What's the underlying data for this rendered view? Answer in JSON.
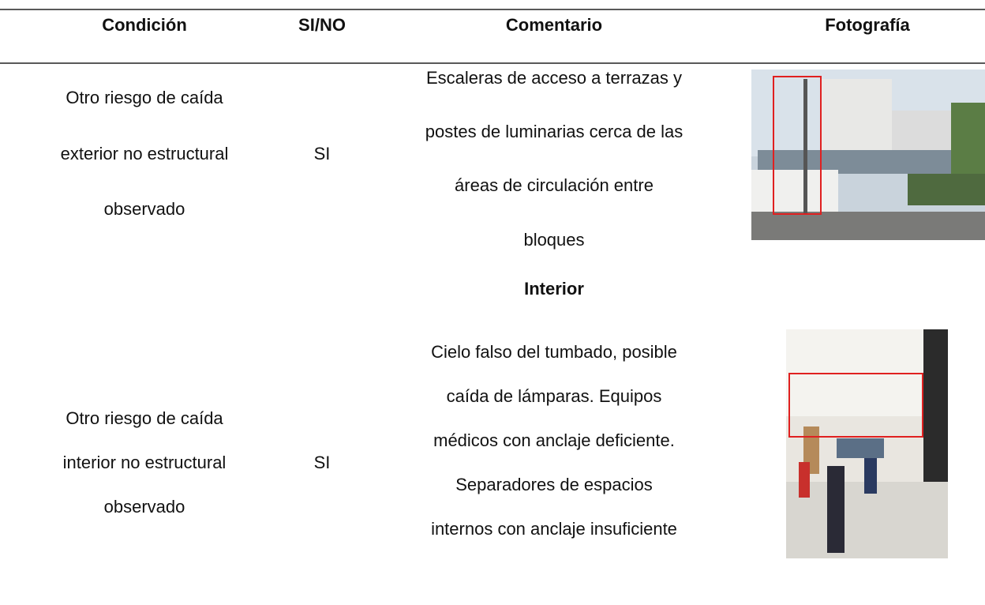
{
  "table": {
    "header": [
      "Condición",
      "SI/NO",
      "Comentario",
      "Fotografía"
    ],
    "rows": [
      {
        "condition": [
          "Otro riesgo de caída",
          "exterior no estructural",
          "observado"
        ],
        "answer": "SI",
        "comment": [
          "Escaleras de acceso a terrazas y",
          "postes de luminarias cerca de las",
          "áreas de circulación entre",
          "bloques"
        ]
      },
      {
        "section": "Interior"
      },
      {
        "condition": [
          "Otro riesgo de caída",
          "interior no estructural",
          "observado"
        ],
        "answer": "SI",
        "comment": [
          "Cielo falso del tumbado, posible",
          "caída de lámparas. Equipos",
          "médicos con anclaje deficiente.",
          "Separadores de espacios",
          "internos con anclaje insuficiente"
        ]
      }
    ]
  }
}
